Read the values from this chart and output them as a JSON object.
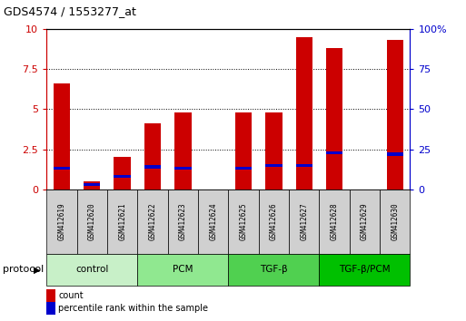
{
  "title": "GDS4574 / 1553277_at",
  "samples": [
    "GSM412619",
    "GSM412620",
    "GSM412621",
    "GSM412622",
    "GSM412623",
    "GSM412624",
    "GSM412625",
    "GSM412626",
    "GSM412627",
    "GSM412628",
    "GSM412629",
    "GSM412630"
  ],
  "count_values": [
    6.6,
    0.5,
    2.0,
    4.1,
    4.8,
    0.0,
    4.8,
    4.8,
    9.5,
    8.8,
    0.0,
    9.3
  ],
  "percentile_values": [
    1.3,
    0.3,
    0.8,
    1.4,
    1.3,
    0.0,
    1.3,
    1.5,
    1.5,
    2.3,
    0.0,
    2.2
  ],
  "bar_color": "#cc0000",
  "percentile_color": "#0000cc",
  "protocol_groups": [
    {
      "label": "control",
      "start": 0,
      "end": 3,
      "color": "#c8f0c8"
    },
    {
      "label": "PCM",
      "start": 3,
      "end": 6,
      "color": "#90e890"
    },
    {
      "label": "TGF-β",
      "start": 6,
      "end": 9,
      "color": "#50d050"
    },
    {
      "label": "TGF-β/PCM",
      "start": 9,
      "end": 12,
      "color": "#00c000"
    }
  ],
  "ylim_left": [
    0,
    10
  ],
  "ylim_right": [
    0,
    100
  ],
  "yticks_left": [
    0,
    2.5,
    5.0,
    7.5,
    10.0
  ],
  "yticks_right": [
    0,
    25,
    50,
    75,
    100
  ],
  "ytick_labels_left": [
    "0",
    "2.5",
    "5",
    "7.5",
    "10"
  ],
  "ytick_labels_right": [
    "0",
    "25",
    "50",
    "75",
    "100%"
  ],
  "left_tick_color": "#cc0000",
  "right_tick_color": "#0000cc",
  "bar_width": 0.55,
  "protocol_label": "protocol",
  "cell_color": "#d0d0d0",
  "grid_yticks": [
    2.5,
    5.0,
    7.5
  ],
  "pct_bar_height": 0.18
}
